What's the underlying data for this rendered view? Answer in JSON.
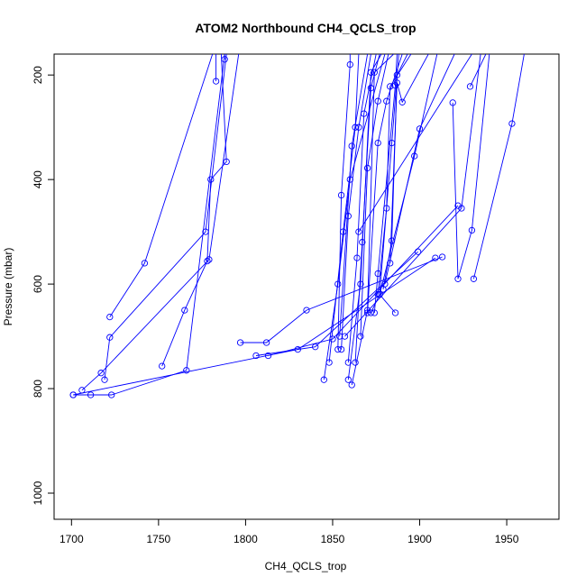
{
  "chart_data": {
    "type": "scatter",
    "title": "ATOM2 Northbound CH4_QCLS_trop",
    "xlabel": "CH4_QCLS_trop",
    "ylabel": "Pressure (mbar)",
    "xlim": [
      1690,
      1980
    ],
    "ylim": [
      1050,
      160
    ],
    "y_reversed": true,
    "x_ticks": [
      1700,
      1750,
      1800,
      1850,
      1900,
      1950
    ],
    "y_ticks": [
      200,
      400,
      600,
      800,
      1000
    ],
    "grid": false,
    "legend": "none",
    "color": "#0000ff",
    "marker": "open-circle",
    "connected": true,
    "series": [
      {
        "points": [
          [
            1701,
            812
          ],
          [
            1711,
            812
          ],
          [
            1723,
            812
          ],
          [
            1766,
            765
          ],
          [
            1788,
            160
          ]
        ]
      },
      {
        "points": [
          [
            1706,
            803
          ],
          [
            1717,
            770
          ],
          [
            1779,
            553
          ],
          [
            1796,
            160
          ]
        ]
      },
      {
        "points": [
          [
            1722,
            663
          ],
          [
            1742,
            560
          ],
          [
            1781,
            160
          ]
        ]
      },
      {
        "points": [
          [
            1719,
            783
          ],
          [
            1722,
            702
          ],
          [
            1777,
            500
          ],
          [
            1789,
            160
          ]
        ]
      },
      {
        "points": [
          [
            1752,
            757
          ],
          [
            1765,
            650
          ],
          [
            1778,
            556
          ],
          [
            1780,
            400
          ],
          [
            1789,
            366
          ],
          [
            1786,
            160
          ]
        ]
      },
      {
        "points": [
          [
            1783,
            212
          ],
          [
            1783,
            160
          ]
        ]
      },
      {
        "points": [
          [
            1788,
            170
          ],
          [
            1788,
            160
          ]
        ]
      },
      {
        "points": [
          [
            1701,
            812
          ],
          [
            1830,
            725
          ],
          [
            1909,
            550
          ]
        ]
      },
      {
        "points": [
          [
            1797,
            712
          ],
          [
            1812,
            712
          ],
          [
            1835,
            650
          ],
          [
            1913,
            548
          ]
        ]
      },
      {
        "points": [
          [
            1806,
            737
          ],
          [
            1840,
            720
          ],
          [
            1899,
            538
          ]
        ]
      },
      {
        "points": [
          [
            1813,
            737
          ],
          [
            1850,
            705
          ],
          [
            1922,
            450
          ]
        ]
      },
      {
        "points": [
          [
            1845,
            783
          ],
          [
            1853,
            600
          ],
          [
            1860,
            400
          ],
          [
            1880,
            160
          ]
        ]
      },
      {
        "points": [
          [
            1848,
            750
          ],
          [
            1856,
            500
          ],
          [
            1863,
            300
          ],
          [
            1865,
            160
          ]
        ]
      },
      {
        "points": [
          [
            1853,
            725
          ],
          [
            1855,
            430
          ],
          [
            1860,
            180
          ],
          [
            1860,
            160
          ]
        ]
      },
      {
        "points": [
          [
            1855,
            725
          ],
          [
            1859,
            470
          ],
          [
            1865,
            300
          ],
          [
            1872,
            160
          ]
        ]
      },
      {
        "points": [
          [
            1854,
            700
          ],
          [
            1861,
            336
          ],
          [
            1870,
            160
          ]
        ]
      },
      {
        "points": [
          [
            1859,
            750
          ],
          [
            1864,
            550
          ],
          [
            1868,
            274
          ],
          [
            1875,
            160
          ]
        ]
      },
      {
        "points": [
          [
            1859,
            783
          ],
          [
            1866,
            600
          ],
          [
            1872,
            195
          ],
          [
            1878,
            160
          ]
        ]
      },
      {
        "points": [
          [
            1861,
            793
          ],
          [
            1870,
            650
          ],
          [
            1874,
            195
          ],
          [
            1885,
            160
          ]
        ]
      },
      {
        "points": [
          [
            1863,
            750
          ],
          [
            1867,
            520
          ],
          [
            1872,
            225
          ],
          [
            1877,
            160
          ]
        ]
      },
      {
        "points": [
          [
            1866,
            700
          ],
          [
            1870,
            378
          ],
          [
            1876,
            250
          ],
          [
            1882,
            160
          ]
        ]
      },
      {
        "points": [
          [
            1870,
            655
          ],
          [
            1876,
            330
          ],
          [
            1881,
            250
          ],
          [
            1890,
            160
          ]
        ]
      },
      {
        "points": [
          [
            1872,
            655
          ],
          [
            1877,
            620
          ],
          [
            1884,
            330
          ],
          [
            1888,
            160
          ]
        ]
      },
      {
        "points": [
          [
            1874,
            655
          ],
          [
            1876,
            580
          ],
          [
            1886,
            220
          ],
          [
            1887,
            160
          ]
        ]
      },
      {
        "points": [
          [
            1876,
            620
          ],
          [
            1881,
            455
          ],
          [
            1883,
            222
          ],
          [
            1895,
            160
          ]
        ]
      },
      {
        "points": [
          [
            1879,
            610
          ],
          [
            1884,
            517
          ],
          [
            1887,
            200
          ],
          [
            1893,
            160
          ]
        ]
      },
      {
        "points": [
          [
            1883,
            560
          ],
          [
            1887,
            215
          ],
          [
            1890,
            252
          ],
          [
            1905,
            160
          ]
        ]
      },
      {
        "points": [
          [
            1886,
            655
          ],
          [
            1877,
            620
          ],
          [
            1897,
            355
          ],
          [
            1910,
            160
          ]
        ]
      },
      {
        "points": [
          [
            1880,
            600
          ],
          [
            1900,
            303
          ],
          [
            1920,
            160
          ]
        ]
      },
      {
        "points": [
          [
            1919,
            253
          ],
          [
            1922,
            590
          ],
          [
            1930,
            497
          ],
          [
            1940,
            160
          ]
        ]
      },
      {
        "points": [
          [
            1931,
            590
          ],
          [
            1953,
            293
          ],
          [
            1960,
            160
          ]
        ]
      },
      {
        "points": [
          [
            1929,
            222
          ],
          [
            1938,
            160
          ]
        ]
      },
      {
        "points": [
          [
            1857,
            700
          ],
          [
            1924,
            455
          ],
          [
            1935,
            160
          ]
        ]
      },
      {
        "points": [
          [
            1865,
            500
          ],
          [
            1930,
            160
          ]
        ]
      }
    ]
  }
}
